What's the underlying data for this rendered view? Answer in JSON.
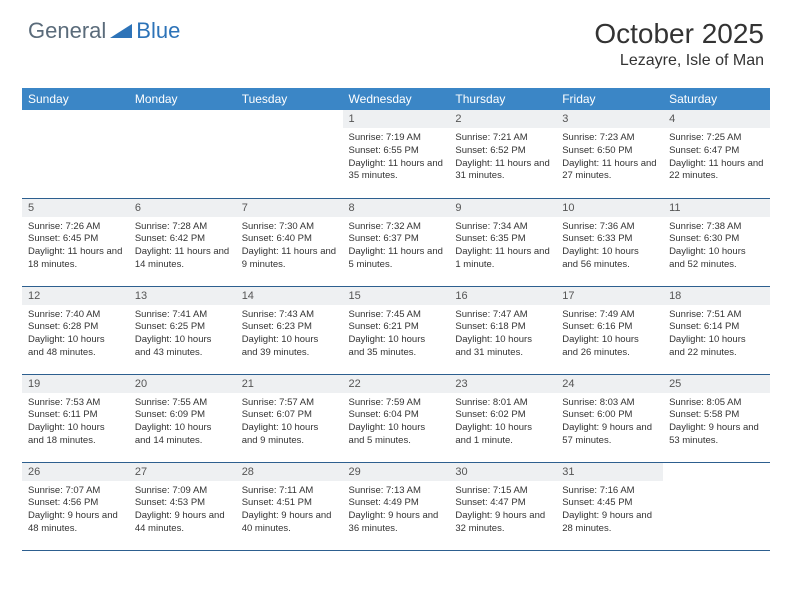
{
  "logo": {
    "text_general": "General",
    "text_blue": "Blue"
  },
  "title": "October 2025",
  "location": "Lezayre, Isle of Man",
  "colors": {
    "header_bg": "#3b86c6",
    "header_text": "#ffffff",
    "daynum_bg": "#eef0f2",
    "row_border": "#2d5f8f",
    "logo_gray": "#5a6b7a",
    "logo_blue": "#2d73b8"
  },
  "weekdays": [
    "Sunday",
    "Monday",
    "Tuesday",
    "Wednesday",
    "Thursday",
    "Friday",
    "Saturday"
  ],
  "weeks": [
    [
      {
        "day": "",
        "sunrise": "",
        "sunset": "",
        "daylight": ""
      },
      {
        "day": "",
        "sunrise": "",
        "sunset": "",
        "daylight": ""
      },
      {
        "day": "",
        "sunrise": "",
        "sunset": "",
        "daylight": ""
      },
      {
        "day": "1",
        "sunrise": "Sunrise: 7:19 AM",
        "sunset": "Sunset: 6:55 PM",
        "daylight": "Daylight: 11 hours and 35 minutes."
      },
      {
        "day": "2",
        "sunrise": "Sunrise: 7:21 AM",
        "sunset": "Sunset: 6:52 PM",
        "daylight": "Daylight: 11 hours and 31 minutes."
      },
      {
        "day": "3",
        "sunrise": "Sunrise: 7:23 AM",
        "sunset": "Sunset: 6:50 PM",
        "daylight": "Daylight: 11 hours and 27 minutes."
      },
      {
        "day": "4",
        "sunrise": "Sunrise: 7:25 AM",
        "sunset": "Sunset: 6:47 PM",
        "daylight": "Daylight: 11 hours and 22 minutes."
      }
    ],
    [
      {
        "day": "5",
        "sunrise": "Sunrise: 7:26 AM",
        "sunset": "Sunset: 6:45 PM",
        "daylight": "Daylight: 11 hours and 18 minutes."
      },
      {
        "day": "6",
        "sunrise": "Sunrise: 7:28 AM",
        "sunset": "Sunset: 6:42 PM",
        "daylight": "Daylight: 11 hours and 14 minutes."
      },
      {
        "day": "7",
        "sunrise": "Sunrise: 7:30 AM",
        "sunset": "Sunset: 6:40 PM",
        "daylight": "Daylight: 11 hours and 9 minutes."
      },
      {
        "day": "8",
        "sunrise": "Sunrise: 7:32 AM",
        "sunset": "Sunset: 6:37 PM",
        "daylight": "Daylight: 11 hours and 5 minutes."
      },
      {
        "day": "9",
        "sunrise": "Sunrise: 7:34 AM",
        "sunset": "Sunset: 6:35 PM",
        "daylight": "Daylight: 11 hours and 1 minute."
      },
      {
        "day": "10",
        "sunrise": "Sunrise: 7:36 AM",
        "sunset": "Sunset: 6:33 PM",
        "daylight": "Daylight: 10 hours and 56 minutes."
      },
      {
        "day": "11",
        "sunrise": "Sunrise: 7:38 AM",
        "sunset": "Sunset: 6:30 PM",
        "daylight": "Daylight: 10 hours and 52 minutes."
      }
    ],
    [
      {
        "day": "12",
        "sunrise": "Sunrise: 7:40 AM",
        "sunset": "Sunset: 6:28 PM",
        "daylight": "Daylight: 10 hours and 48 minutes."
      },
      {
        "day": "13",
        "sunrise": "Sunrise: 7:41 AM",
        "sunset": "Sunset: 6:25 PM",
        "daylight": "Daylight: 10 hours and 43 minutes."
      },
      {
        "day": "14",
        "sunrise": "Sunrise: 7:43 AM",
        "sunset": "Sunset: 6:23 PM",
        "daylight": "Daylight: 10 hours and 39 minutes."
      },
      {
        "day": "15",
        "sunrise": "Sunrise: 7:45 AM",
        "sunset": "Sunset: 6:21 PM",
        "daylight": "Daylight: 10 hours and 35 minutes."
      },
      {
        "day": "16",
        "sunrise": "Sunrise: 7:47 AM",
        "sunset": "Sunset: 6:18 PM",
        "daylight": "Daylight: 10 hours and 31 minutes."
      },
      {
        "day": "17",
        "sunrise": "Sunrise: 7:49 AM",
        "sunset": "Sunset: 6:16 PM",
        "daylight": "Daylight: 10 hours and 26 minutes."
      },
      {
        "day": "18",
        "sunrise": "Sunrise: 7:51 AM",
        "sunset": "Sunset: 6:14 PM",
        "daylight": "Daylight: 10 hours and 22 minutes."
      }
    ],
    [
      {
        "day": "19",
        "sunrise": "Sunrise: 7:53 AM",
        "sunset": "Sunset: 6:11 PM",
        "daylight": "Daylight: 10 hours and 18 minutes."
      },
      {
        "day": "20",
        "sunrise": "Sunrise: 7:55 AM",
        "sunset": "Sunset: 6:09 PM",
        "daylight": "Daylight: 10 hours and 14 minutes."
      },
      {
        "day": "21",
        "sunrise": "Sunrise: 7:57 AM",
        "sunset": "Sunset: 6:07 PM",
        "daylight": "Daylight: 10 hours and 9 minutes."
      },
      {
        "day": "22",
        "sunrise": "Sunrise: 7:59 AM",
        "sunset": "Sunset: 6:04 PM",
        "daylight": "Daylight: 10 hours and 5 minutes."
      },
      {
        "day": "23",
        "sunrise": "Sunrise: 8:01 AM",
        "sunset": "Sunset: 6:02 PM",
        "daylight": "Daylight: 10 hours and 1 minute."
      },
      {
        "day": "24",
        "sunrise": "Sunrise: 8:03 AM",
        "sunset": "Sunset: 6:00 PM",
        "daylight": "Daylight: 9 hours and 57 minutes."
      },
      {
        "day": "25",
        "sunrise": "Sunrise: 8:05 AM",
        "sunset": "Sunset: 5:58 PM",
        "daylight": "Daylight: 9 hours and 53 minutes."
      }
    ],
    [
      {
        "day": "26",
        "sunrise": "Sunrise: 7:07 AM",
        "sunset": "Sunset: 4:56 PM",
        "daylight": "Daylight: 9 hours and 48 minutes."
      },
      {
        "day": "27",
        "sunrise": "Sunrise: 7:09 AM",
        "sunset": "Sunset: 4:53 PM",
        "daylight": "Daylight: 9 hours and 44 minutes."
      },
      {
        "day": "28",
        "sunrise": "Sunrise: 7:11 AM",
        "sunset": "Sunset: 4:51 PM",
        "daylight": "Daylight: 9 hours and 40 minutes."
      },
      {
        "day": "29",
        "sunrise": "Sunrise: 7:13 AM",
        "sunset": "Sunset: 4:49 PM",
        "daylight": "Daylight: 9 hours and 36 minutes."
      },
      {
        "day": "30",
        "sunrise": "Sunrise: 7:15 AM",
        "sunset": "Sunset: 4:47 PM",
        "daylight": "Daylight: 9 hours and 32 minutes."
      },
      {
        "day": "31",
        "sunrise": "Sunrise: 7:16 AM",
        "sunset": "Sunset: 4:45 PM",
        "daylight": "Daylight: 9 hours and 28 minutes."
      },
      {
        "day": "",
        "sunrise": "",
        "sunset": "",
        "daylight": ""
      }
    ]
  ]
}
